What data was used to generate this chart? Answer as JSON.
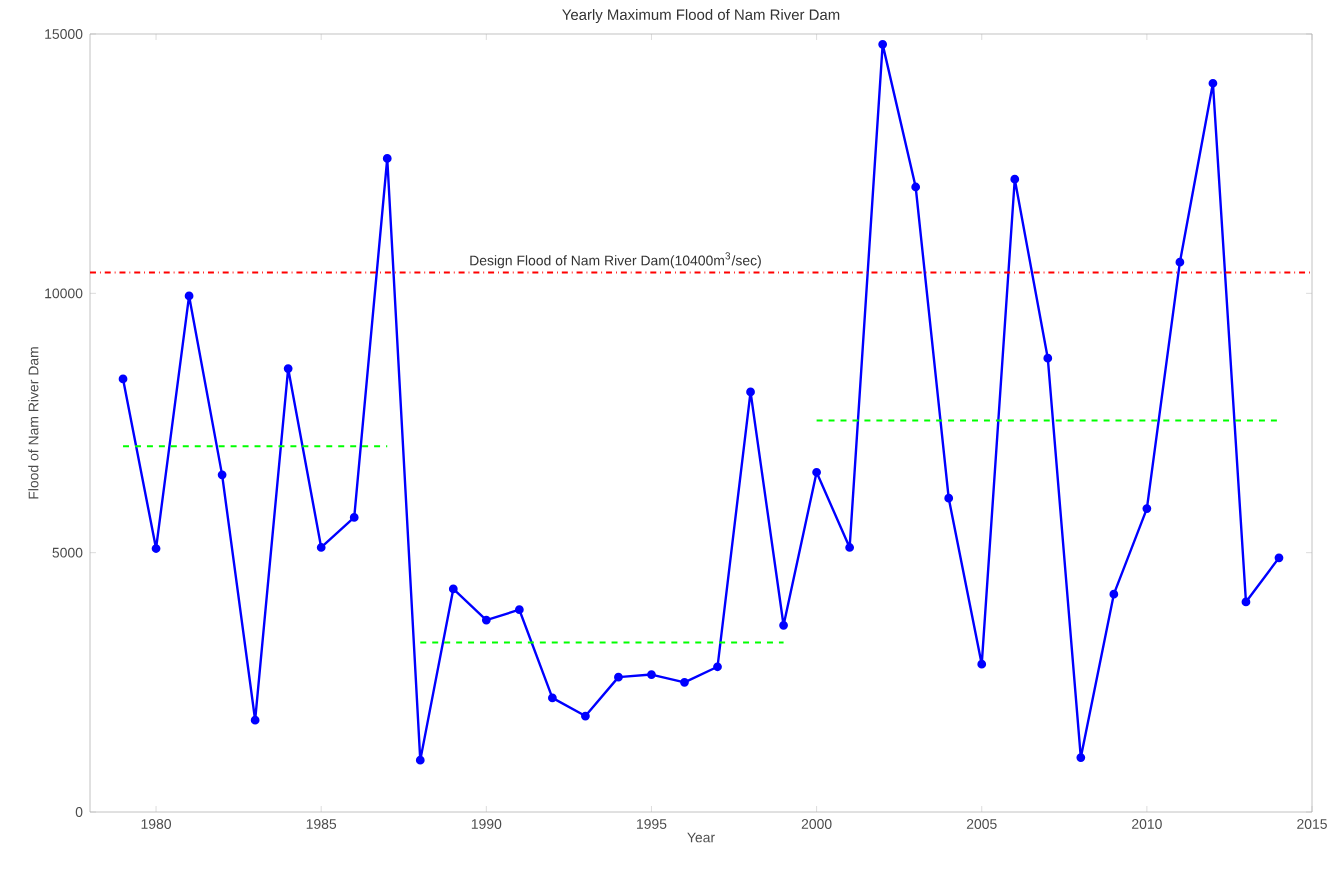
{
  "chart_data": {
    "type": "line",
    "title": "Yearly Maximum Flood of Nam River Dam",
    "xlabel": "Year",
    "ylabel": "Flood of Nam River Dam",
    "xlim": [
      1978,
      2015
    ],
    "xticks": [
      1980,
      1985,
      1990,
      1995,
      2000,
      2005,
      2010,
      2015
    ],
    "ylim": [
      0,
      15000
    ],
    "yticks": [
      0,
      5000,
      10000,
      15000
    ],
    "marker": "circle",
    "line_style": "solid",
    "series": [
      {
        "color": "#0000ff",
        "x": [
          1979,
          1980,
          1981,
          1982,
          1983,
          1984,
          1985,
          1986,
          1987,
          1988,
          1989,
          1990,
          1991,
          1992,
          1993,
          1994,
          1995,
          1996,
          1997,
          1998,
          1999,
          2000,
          2001,
          2002,
          2003,
          2004,
          2005,
          2006,
          2007,
          2008,
          2009,
          2010,
          2011,
          2012,
          2013,
          2014
        ],
        "values": [
          8350,
          5080,
          9950,
          6500,
          1770,
          8550,
          5100,
          5680,
          12600,
          1000,
          4300,
          3700,
          3900,
          2200,
          1850,
          2600,
          2650,
          2500,
          2800,
          8100,
          3600,
          6550,
          5100,
          14800,
          12050,
          6050,
          2850,
          12200,
          8750,
          1050,
          4200,
          5850,
          10600,
          14050,
          4050,
          4900
        ]
      },
      {
        "type": "line",
        "color": "#00ff00",
        "marker": "none",
        "line_style": "dashed",
        "x": [
          1979,
          1987
        ],
        "values": [
          7050,
          7050
        ]
      },
      {
        "type": "line",
        "color": "#00ff00",
        "marker": "none",
        "line_style": "dashed",
        "x": [
          1988,
          1999
        ],
        "values": [
          3270,
          3270
        ]
      },
      {
        "type": "line",
        "color": "#00ff00",
        "marker": "none",
        "line_style": "dashed",
        "x": [
          2000,
          2014
        ],
        "values": [
          7550,
          7550
        ]
      }
    ],
    "ref_lines": [
      {
        "axis": "y",
        "value": 10400,
        "label": "Design Flood of Nam River Dam(10400m$^{3}$/sec)",
        "color": "#ff0000",
        "line_style": "dashed"
      }
    ]
  }
}
